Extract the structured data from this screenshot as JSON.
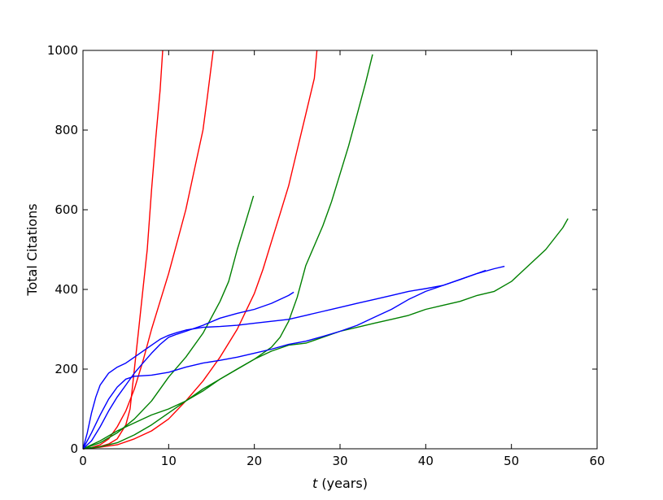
{
  "chart_data": {
    "type": "line",
    "title": "",
    "xlabel_var": "t",
    "xlabel_rest": " (years)",
    "ylabel": "Total Citations",
    "xlim": [
      0,
      60
    ],
    "ylim": [
      0,
      1000
    ],
    "xticks": [
      0,
      10,
      20,
      30,
      40,
      50,
      60
    ],
    "yticks": [
      0,
      200,
      400,
      600,
      800,
      1000
    ],
    "grid": false,
    "legend": "none",
    "colors": {
      "red": "#ff0000",
      "green": "#008000",
      "blue": "#0000ff"
    },
    "series": [
      {
        "color": "red",
        "points": [
          [
            0,
            0
          ],
          [
            1,
            2
          ],
          [
            2,
            6
          ],
          [
            3,
            12
          ],
          [
            4,
            25
          ],
          [
            5,
            60
          ],
          [
            5.5,
            100
          ],
          [
            6,
            200
          ],
          [
            6.5,
            300
          ],
          [
            7,
            400
          ],
          [
            7.5,
            500
          ],
          [
            8,
            650
          ],
          [
            8.5,
            780
          ],
          [
            9,
            900
          ],
          [
            9.3,
            1000
          ]
        ]
      },
      {
        "color": "red",
        "points": [
          [
            0,
            0
          ],
          [
            1,
            3
          ],
          [
            2,
            10
          ],
          [
            3,
            25
          ],
          [
            4,
            55
          ],
          [
            5,
            95
          ],
          [
            6,
            150
          ],
          [
            7,
            220
          ],
          [
            8,
            300
          ],
          [
            9,
            370
          ],
          [
            10,
            440
          ],
          [
            11,
            520
          ],
          [
            12,
            600
          ],
          [
            13,
            700
          ],
          [
            14,
            800
          ],
          [
            14.5,
            880
          ],
          [
            15.2,
            1000
          ]
        ]
      },
      {
        "color": "red",
        "points": [
          [
            0,
            0
          ],
          [
            2,
            4
          ],
          [
            4,
            10
          ],
          [
            6,
            25
          ],
          [
            8,
            45
          ],
          [
            10,
            75
          ],
          [
            12,
            120
          ],
          [
            14,
            170
          ],
          [
            16,
            230
          ],
          [
            18,
            300
          ],
          [
            20,
            390
          ],
          [
            21,
            450
          ],
          [
            22,
            520
          ],
          [
            23,
            590
          ],
          [
            24,
            660
          ],
          [
            25,
            750
          ],
          [
            26,
            840
          ],
          [
            27,
            930
          ],
          [
            27.3,
            1000
          ]
        ]
      },
      {
        "color": "green",
        "points": [
          [
            0,
            0
          ],
          [
            2,
            15
          ],
          [
            4,
            40
          ],
          [
            6,
            75
          ],
          [
            8,
            120
          ],
          [
            10,
            180
          ],
          [
            12,
            230
          ],
          [
            14,
            290
          ],
          [
            16,
            370
          ],
          [
            17,
            420
          ],
          [
            18,
            500
          ],
          [
            19,
            570
          ],
          [
            19.9,
            635
          ]
        ]
      },
      {
        "color": "green",
        "points": [
          [
            0,
            0
          ],
          [
            2,
            20
          ],
          [
            4,
            45
          ],
          [
            6,
            65
          ],
          [
            8,
            85
          ],
          [
            10,
            100
          ],
          [
            12,
            120
          ],
          [
            14,
            150
          ],
          [
            16,
            175
          ],
          [
            18,
            200
          ],
          [
            20,
            225
          ],
          [
            22,
            255
          ],
          [
            23,
            280
          ],
          [
            24,
            320
          ],
          [
            25,
            380
          ],
          [
            26,
            460
          ],
          [
            27,
            510
          ],
          [
            28,
            560
          ],
          [
            29,
            620
          ],
          [
            30,
            690
          ],
          [
            31,
            760
          ],
          [
            32,
            840
          ],
          [
            33,
            920
          ],
          [
            33.8,
            990
          ]
        ]
      },
      {
        "color": "green",
        "points": [
          [
            0,
            0
          ],
          [
            2,
            5
          ],
          [
            4,
            15
          ],
          [
            6,
            35
          ],
          [
            8,
            60
          ],
          [
            10,
            90
          ],
          [
            12,
            120
          ],
          [
            14,
            145
          ],
          [
            16,
            175
          ],
          [
            18,
            200
          ],
          [
            20,
            225
          ],
          [
            22,
            245
          ],
          [
            24,
            260
          ],
          [
            26,
            265
          ],
          [
            28,
            280
          ],
          [
            30,
            295
          ],
          [
            32,
            305
          ],
          [
            34,
            315
          ],
          [
            36,
            325
          ],
          [
            38,
            335
          ],
          [
            40,
            350
          ],
          [
            42,
            360
          ],
          [
            44,
            370
          ],
          [
            46,
            385
          ],
          [
            48,
            395
          ],
          [
            50,
            420
          ],
          [
            52,
            460
          ],
          [
            54,
            500
          ],
          [
            56,
            555
          ],
          [
            56.6,
            578
          ]
        ]
      },
      {
        "color": "blue",
        "points": [
          [
            0,
            0
          ],
          [
            0.5,
            40
          ],
          [
            1,
            90
          ],
          [
            1.5,
            130
          ],
          [
            2,
            160
          ],
          [
            3,
            190
          ],
          [
            4,
            205
          ],
          [
            5,
            215
          ],
          [
            6,
            230
          ],
          [
            7,
            245
          ],
          [
            8,
            260
          ],
          [
            9,
            275
          ],
          [
            10,
            285
          ],
          [
            11,
            292
          ],
          [
            12,
            298
          ],
          [
            14,
            305
          ],
          [
            16,
            307
          ],
          [
            18,
            310
          ],
          [
            20,
            315
          ],
          [
            22,
            320
          ],
          [
            24,
            325
          ],
          [
            26,
            335
          ],
          [
            28,
            345
          ],
          [
            30,
            355
          ],
          [
            32,
            365
          ],
          [
            34,
            375
          ],
          [
            36,
            385
          ],
          [
            38,
            395
          ],
          [
            40,
            402
          ],
          [
            42,
            410
          ],
          [
            44,
            425
          ],
          [
            46,
            440
          ],
          [
            47,
            448
          ]
        ]
      },
      {
        "color": "blue",
        "points": [
          [
            0,
            0
          ],
          [
            1,
            40
          ],
          [
            2,
            85
          ],
          [
            3,
            125
          ],
          [
            4,
            155
          ],
          [
            5,
            175
          ],
          [
            6,
            182
          ],
          [
            8,
            185
          ],
          [
            10,
            192
          ],
          [
            12,
            205
          ],
          [
            14,
            215
          ],
          [
            16,
            222
          ],
          [
            18,
            230
          ],
          [
            20,
            240
          ],
          [
            22,
            250
          ],
          [
            24,
            262
          ],
          [
            26,
            270
          ],
          [
            28,
            282
          ],
          [
            30,
            295
          ],
          [
            32,
            310
          ],
          [
            34,
            330
          ],
          [
            36,
            350
          ],
          [
            38,
            375
          ],
          [
            40,
            395
          ],
          [
            42,
            410
          ],
          [
            44,
            425
          ],
          [
            46,
            440
          ],
          [
            48,
            452
          ],
          [
            49.2,
            458
          ]
        ]
      },
      {
        "color": "blue",
        "points": [
          [
            0,
            0
          ],
          [
            1,
            20
          ],
          [
            2,
            55
          ],
          [
            3,
            95
          ],
          [
            4,
            130
          ],
          [
            5,
            160
          ],
          [
            6,
            190
          ],
          [
            7,
            215
          ],
          [
            8,
            240
          ],
          [
            9,
            262
          ],
          [
            10,
            280
          ],
          [
            11,
            288
          ],
          [
            12,
            295
          ],
          [
            14,
            310
          ],
          [
            16,
            328
          ],
          [
            18,
            340
          ],
          [
            20,
            350
          ],
          [
            22,
            365
          ],
          [
            24,
            385
          ],
          [
            24.6,
            393
          ]
        ]
      }
    ]
  }
}
